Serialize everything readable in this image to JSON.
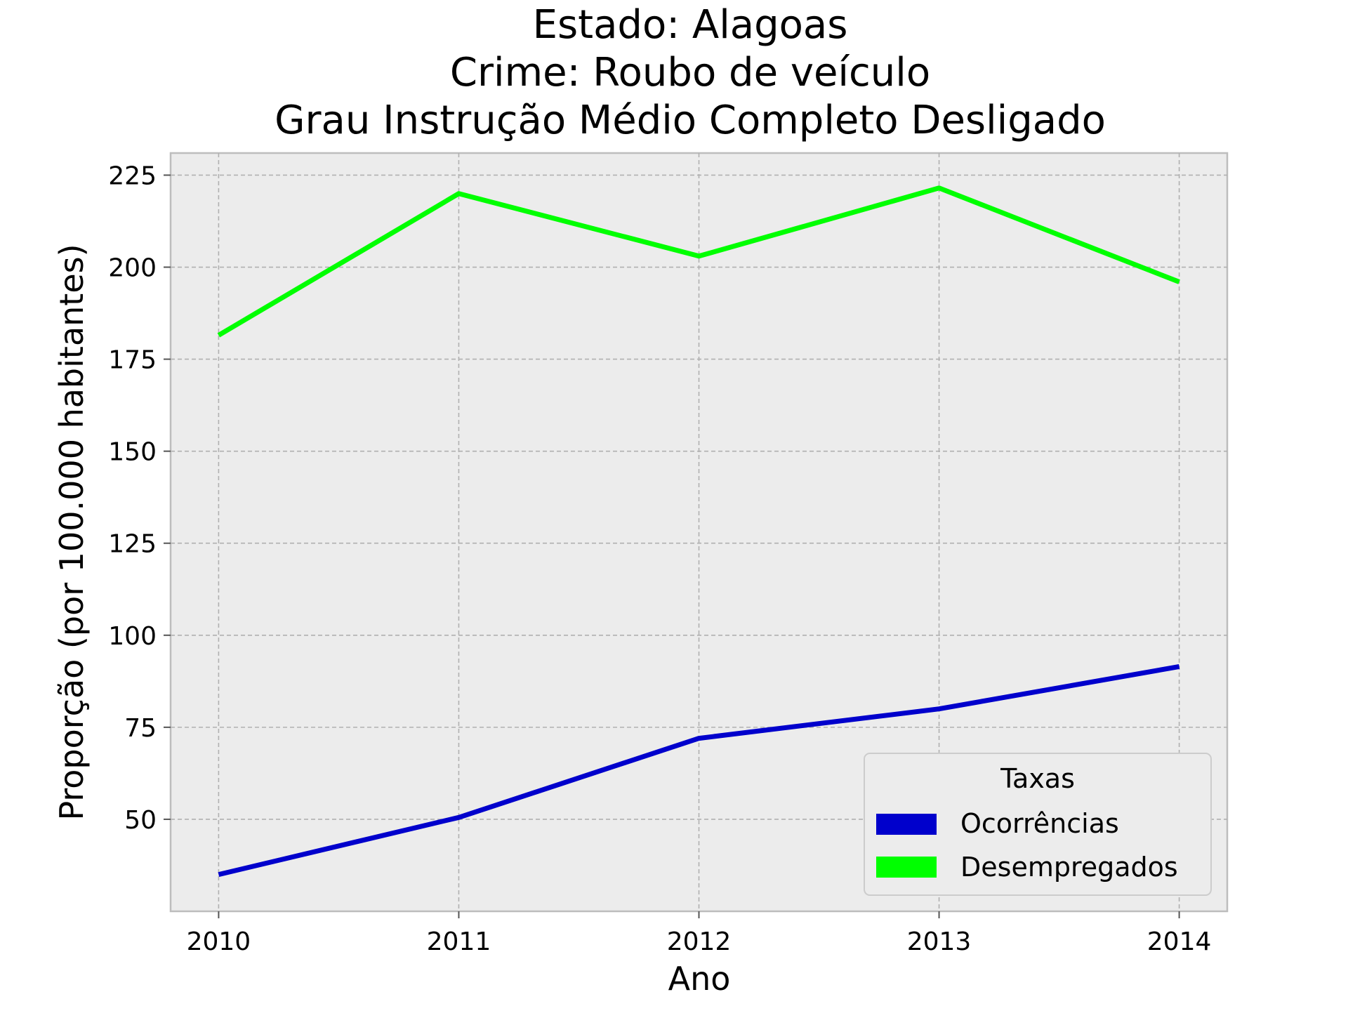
{
  "chart_data": {
    "type": "line",
    "title_lines": [
      "Estado: Alagoas",
      "Crime: Roubo de veículo",
      "Grau Instrução  Médio Completo   Desligado"
    ],
    "xlabel": "Ano",
    "ylabel": "Proporção (por 100.000 habitantes)",
    "x": [
      2010,
      2011,
      2012,
      2013,
      2014
    ],
    "x_tick_labels": [
      "2010",
      "2011",
      "2012",
      "2013",
      "2014"
    ],
    "y_ticks": [
      50,
      75,
      100,
      125,
      150,
      175,
      200,
      225
    ],
    "y_tick_labels": [
      "50",
      "75",
      "100",
      "125",
      "150",
      "175",
      "200",
      "225"
    ],
    "ylim": [
      25,
      231
    ],
    "grid": true,
    "legend": {
      "title": "Taxas",
      "placement": "bottom-right"
    },
    "series": [
      {
        "name": "Ocorrências",
        "color": "#0000cc",
        "values": [
          35,
          50.5,
          72,
          80,
          91.5
        ]
      },
      {
        "name": "Desempregados",
        "color": "#00ff00",
        "values": [
          181.5,
          220,
          203,
          221.5,
          196
        ]
      }
    ]
  }
}
